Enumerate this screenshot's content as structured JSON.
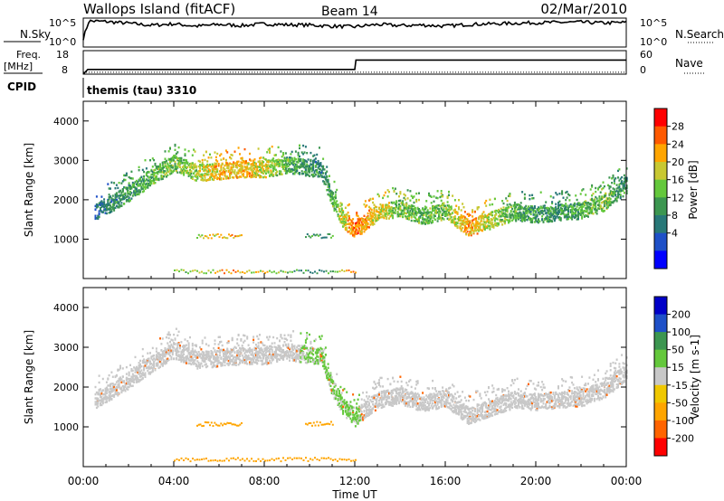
{
  "header": {
    "station": "Wallops Island (fitACF)",
    "beam": "Beam 14",
    "date": "02/Mar/2010"
  },
  "cpid_label": "CPID",
  "cpid_value": "themis (tau) 3310",
  "x_axis": {
    "label": "Time UT",
    "ticks": [
      "00:00",
      "04:00",
      "08:00",
      "12:00",
      "16:00",
      "20:00",
      "00:00"
    ],
    "range_hours": [
      0,
      24
    ]
  },
  "chart_data": [
    {
      "type": "line",
      "panel": "nsky-nsearch",
      "left_label": "N.Sky",
      "right_label": "N.Search",
      "left_ticks": [
        "10^5",
        "10^0"
      ],
      "right_ticks": [
        "10^5",
        "10^0"
      ],
      "x": [
        0,
        0.25,
        1,
        2,
        3,
        4,
        5,
        6,
        7,
        8,
        9,
        10,
        11,
        12,
        13,
        14,
        15,
        16,
        17,
        18,
        19,
        20,
        21,
        22,
        23,
        24
      ],
      "values": [
        0.3,
        0.9,
        0.88,
        0.82,
        0.75,
        0.8,
        0.72,
        0.78,
        0.74,
        0.8,
        0.77,
        0.76,
        0.72,
        0.7,
        0.78,
        0.74,
        0.76,
        0.72,
        0.78,
        0.8,
        0.82,
        0.84,
        0.85,
        0.86,
        0.83,
        0.85
      ]
    },
    {
      "type": "line",
      "panel": "freq-nave",
      "left_label": "Freq.",
      "left_unit": "[MHz]",
      "right_label": "Nave",
      "left_ticks": [
        "18",
        "8"
      ],
      "right_ticks": [
        "60",
        "0"
      ],
      "x": [
        0,
        0.2,
        12,
        12.05,
        24
      ],
      "values_mhz": [
        8,
        10,
        10,
        14,
        14
      ]
    },
    {
      "type": "heatmap",
      "panel": "power",
      "ylabel": "Slant Range [km]",
      "ylim": [
        0,
        4500
      ],
      "yticks": [
        1000,
        2000,
        3000,
        4000
      ],
      "colorbar_label": "Power [dB]",
      "colorbar_ticks": [
        "28",
        "24",
        "20",
        "16",
        "12",
        "8",
        "4"
      ],
      "colorscale": [
        "#0000ff",
        "#1e50c8",
        "#287878",
        "#3c9650",
        "#64c83c",
        "#c8c832",
        "#ffa500",
        "#ff5a00",
        "#ff0000"
      ],
      "x_hours": [
        0.5,
        1,
        2,
        3,
        4,
        5,
        6,
        7,
        8,
        9,
        10.5,
        11,
        11.5,
        12,
        13,
        14,
        15,
        16,
        17,
        18,
        19,
        20,
        21,
        22,
        23,
        24
      ],
      "slant_range_km": [
        1700,
        1850,
        2200,
        2600,
        2950,
        2700,
        2750,
        2800,
        2800,
        2900,
        2800,
        2000,
        1500,
        1250,
        1700,
        1800,
        1600,
        1750,
        1300,
        1500,
        1700,
        1650,
        1700,
        1750,
        1950,
        2400
      ],
      "power_db": [
        8,
        10,
        12,
        14,
        16,
        18,
        22,
        22,
        20,
        14,
        10,
        14,
        20,
        26,
        20,
        16,
        14,
        16,
        24,
        18,
        14,
        12,
        12,
        14,
        16,
        10
      ],
      "ground_scatter_km": 1100,
      "ground_scatter_hours": [
        [
          5,
          7
        ],
        [
          9.8,
          11
        ]
      ]
    },
    {
      "type": "heatmap",
      "panel": "velocity",
      "ylabel": "Slant Range [km]",
      "ylim": [
        0,
        4500
      ],
      "yticks": [
        1000,
        2000,
        3000,
        4000
      ],
      "colorbar_label": "Velocity [m s-1]",
      "colorbar_ticks": [
        "200",
        "100",
        "50",
        "15",
        "-15",
        "-50",
        "-100",
        "-200"
      ],
      "colorscale": [
        "#ff0000",
        "#ff6400",
        "#ffa500",
        "#f0c800",
        "#c8c8c8",
        "#64c83c",
        "#3c9650",
        "#1e50c8",
        "#0000c8"
      ],
      "x_hours": [
        0.5,
        1,
        2,
        3,
        4,
        5,
        6,
        7,
        8,
        9,
        10.5,
        11,
        11.5,
        12,
        13,
        14,
        15,
        16,
        17,
        18,
        19,
        20,
        21,
        22,
        23,
        24
      ],
      "slant_range_km": [
        1700,
        1850,
        2200,
        2600,
        2950,
        2700,
        2750,
        2800,
        2800,
        2900,
        2800,
        2000,
        1500,
        1250,
        1700,
        1800,
        1600,
        1750,
        1300,
        1500,
        1700,
        1650,
        1700,
        1750,
        1950,
        2400
      ],
      "velocity_ms": [
        0,
        0,
        0,
        0,
        0,
        0,
        0,
        0,
        0,
        0,
        80,
        60,
        60,
        40,
        0,
        0,
        0,
        0,
        0,
        0,
        0,
        0,
        0,
        0,
        0,
        0
      ],
      "ground_scatter_km": 1100,
      "ground_scatter_hours": [
        [
          5,
          7
        ],
        [
          9.8,
          11
        ]
      ]
    }
  ]
}
